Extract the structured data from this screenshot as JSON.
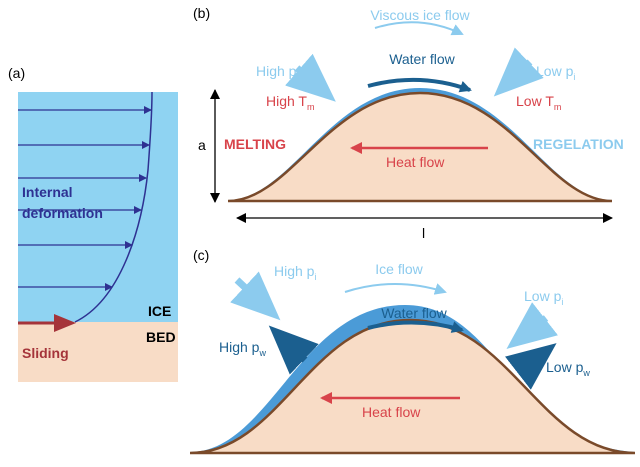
{
  "panel_a": {
    "label": "(a)",
    "deformation": [
      "Internal",
      "deformation"
    ],
    "ice": "ICE",
    "bed": "BED",
    "sliding": "Sliding"
  },
  "panel_b": {
    "label": "(b)",
    "viscous_flow": "Viscous ice flow",
    "water_flow": "Water flow",
    "high_pi": {
      "text": "High p",
      "sub": "i"
    },
    "low_pi": {
      "text": "Low p",
      "sub": "i"
    },
    "high_tm": {
      "text": "High T",
      "sub": "m"
    },
    "low_tm": {
      "text": "Low T",
      "sub": "m"
    },
    "melting": "MELTING",
    "regelation": "REGELATION",
    "heat_flow": "Heat flow",
    "height": "a",
    "length": "l"
  },
  "panel_c": {
    "label": "(c)",
    "ice_flow": "Ice flow",
    "water_flow": "Water flow",
    "high_pi": {
      "text": "High p",
      "sub": "i"
    },
    "low_pi": {
      "text": "Low p",
      "sub": "i"
    },
    "high_pw": {
      "text": "High p",
      "sub": "w"
    },
    "low_pw": {
      "text": "Low p",
      "sub": "w"
    },
    "heat_flow": "Heat flow"
  }
}
